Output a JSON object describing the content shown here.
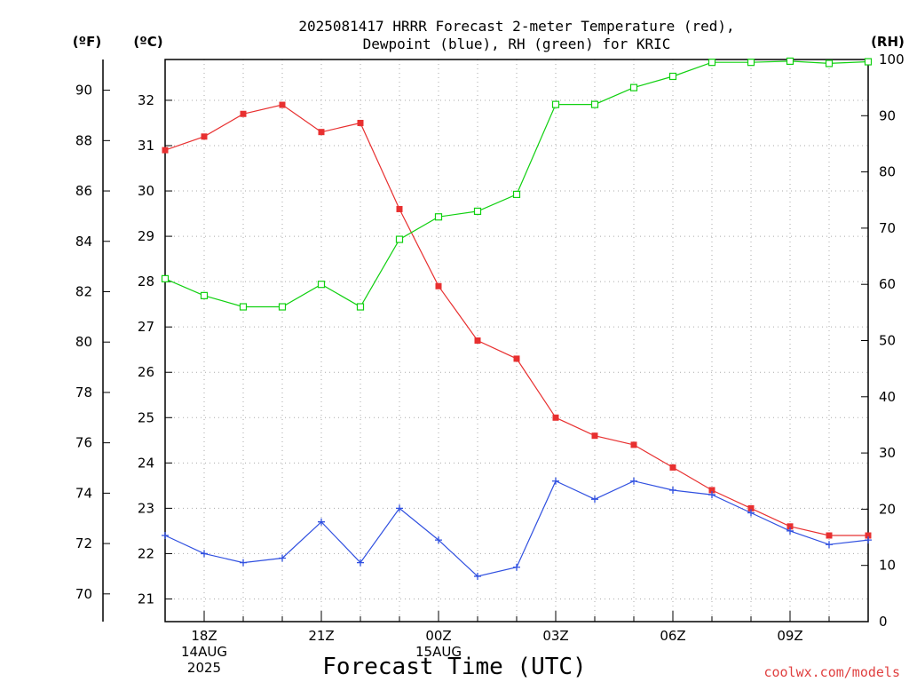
{
  "chart_data": {
    "type": "line",
    "title": "2025081417 HRRR Forecast 2-meter Temperature (red),",
    "subtitle": "Dewpoint (blue), RH (green) for KRIC",
    "xlabel": "Forecast Time (UTC)",
    "units": {
      "fahrenheit": "(ºF)",
      "celsius": "(ºC)",
      "rh": "(RH)"
    },
    "credit": "coolwx.com/models",
    "x_ticks": [
      {
        "hour": 1,
        "lines": [
          "18Z",
          "14AUG",
          "2025"
        ]
      },
      {
        "hour": 4,
        "lines": [
          "21Z"
        ]
      },
      {
        "hour": 7,
        "lines": [
          "00Z",
          "15AUG"
        ]
      },
      {
        "hour": 10,
        "lines": [
          "03Z"
        ]
      },
      {
        "hour": 13,
        "lines": [
          "06Z"
        ]
      },
      {
        "hour": 16,
        "lines": [
          "09Z"
        ]
      }
    ],
    "xlim": [
      0,
      18
    ],
    "ylim_c": [
      20.5,
      32.9
    ],
    "ylim_rh": [
      0,
      100
    ],
    "y_ticks_c": [
      21,
      22,
      23,
      24,
      25,
      26,
      27,
      28,
      29,
      30,
      31,
      32
    ],
    "y_ticks_f": [
      70,
      72,
      74,
      76,
      78,
      80,
      82,
      84,
      86,
      88,
      90
    ],
    "y_ticks_rh": [
      0,
      10,
      20,
      30,
      40,
      50,
      60,
      70,
      80,
      90,
      100
    ],
    "grid": true,
    "series": [
      {
        "name": "Temperature",
        "axis": "c",
        "color": "#e83030",
        "marker": "filled-square",
        "values": [
          30.9,
          31.2,
          31.7,
          31.9,
          31.3,
          31.5,
          29.6,
          27.9,
          26.7,
          26.3,
          25.0,
          24.6,
          24.4,
          23.9,
          23.4,
          23.0,
          22.6,
          22.4,
          22.4
        ]
      },
      {
        "name": "Dewpoint",
        "axis": "c",
        "color": "#3050e0",
        "marker": "plus",
        "values": [
          22.4,
          22.0,
          21.8,
          21.9,
          22.7,
          21.8,
          23.0,
          22.3,
          21.5,
          21.7,
          23.6,
          23.2,
          23.6,
          23.4,
          23.3,
          22.9,
          22.5,
          22.2,
          22.3
        ]
      },
      {
        "name": "RH",
        "axis": "rh",
        "color": "#10d010",
        "marker": "open-square",
        "values": [
          61,
          58,
          56,
          56,
          60,
          56,
          68,
          72,
          73,
          76,
          92,
          92,
          95,
          97,
          99.5,
          99.5,
          99.7,
          99.3,
          99.6
        ]
      }
    ]
  }
}
